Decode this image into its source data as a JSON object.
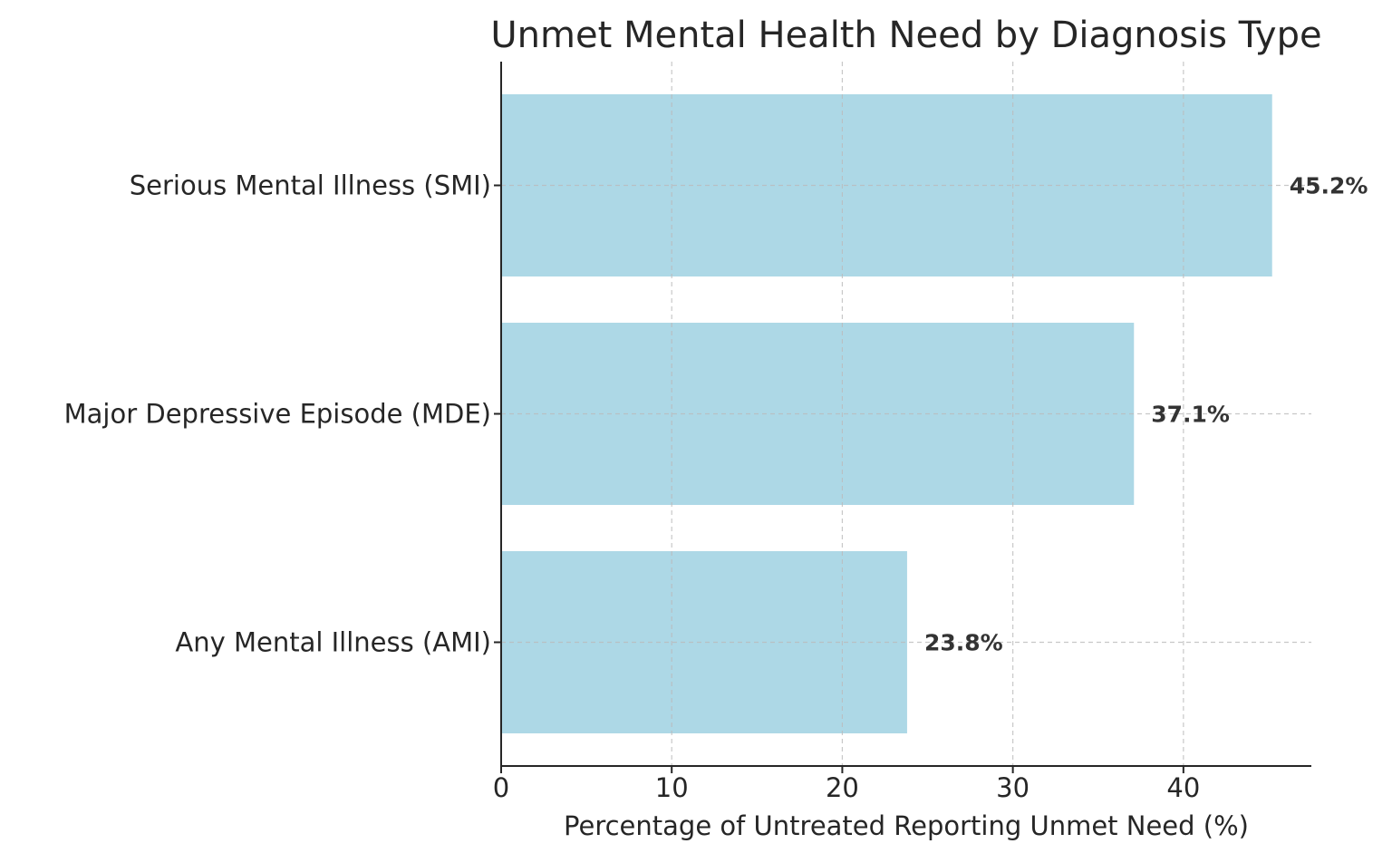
{
  "chart_data": {
    "type": "bar",
    "orientation": "horizontal",
    "title": "Unmet Mental Health Need by Diagnosis Type",
    "xlabel": "Percentage of Untreated Reporting Unmet Need (%)",
    "ylabel": "",
    "categories": [
      "Serious Mental Illness (SMI)",
      "Major Depressive Episode (MDE)",
      "Any Mental Illness (AMI)"
    ],
    "values": [
      45.2,
      37.1,
      23.8
    ],
    "data_labels": [
      "45.2%",
      "37.1%",
      "23.8%"
    ],
    "xlim": [
      0,
      47.5
    ],
    "xticks": [
      0,
      10,
      20,
      30,
      40
    ],
    "xtick_labels": [
      "0",
      "10",
      "20",
      "30",
      "40"
    ],
    "grid": true,
    "bar_color": "#ADD8E6",
    "label_color": "#333333"
  }
}
